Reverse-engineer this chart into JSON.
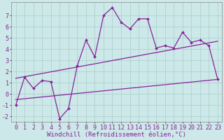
{
  "background_color": "#cce8e8",
  "grid_color": "#aacccc",
  "line_color": "#882299",
  "marker_color": "#882299",
  "xlabel": "Windchill (Refroidissement éolien,°C)",
  "xlabel_fontsize": 6.5,
  "xlim": [
    -0.5,
    23.5
  ],
  "ylim": [
    -2.5,
    8.2
  ],
  "xticks": [
    0,
    1,
    2,
    3,
    4,
    5,
    6,
    7,
    8,
    9,
    10,
    11,
    12,
    13,
    14,
    15,
    16,
    17,
    18,
    19,
    20,
    21,
    22,
    23
  ],
  "yticks": [
    -2,
    -1,
    0,
    1,
    2,
    3,
    4,
    5,
    6,
    7
  ],
  "tick_fontsize": 6,
  "series": [
    {
      "x": [
        0,
        1,
        2,
        3,
        4,
        5,
        6,
        7,
        8,
        9,
        10,
        11,
        12,
        13,
        14,
        15,
        16,
        17,
        18,
        19,
        20,
        21,
        22,
        23
      ],
      "y": [
        -1.0,
        1.5,
        0.5,
        1.2,
        1.1,
        -2.2,
        -1.3,
        2.5,
        4.8,
        3.3,
        7.0,
        7.7,
        6.4,
        5.8,
        6.7,
        6.7,
        4.1,
        4.3,
        4.1,
        5.5,
        4.6,
        4.8,
        4.3,
        1.3
      ],
      "marker": "D",
      "markersize": 2.0,
      "linewidth": 0.9,
      "has_marker": true
    },
    {
      "x": [
        0,
        23
      ],
      "y": [
        1.4,
        4.7
      ],
      "marker": null,
      "markersize": 0,
      "linewidth": 0.9,
      "has_marker": false
    },
    {
      "x": [
        0,
        23
      ],
      "y": [
        -0.5,
        1.3
      ],
      "marker": null,
      "markersize": 0,
      "linewidth": 0.9,
      "has_marker": false
    }
  ]
}
